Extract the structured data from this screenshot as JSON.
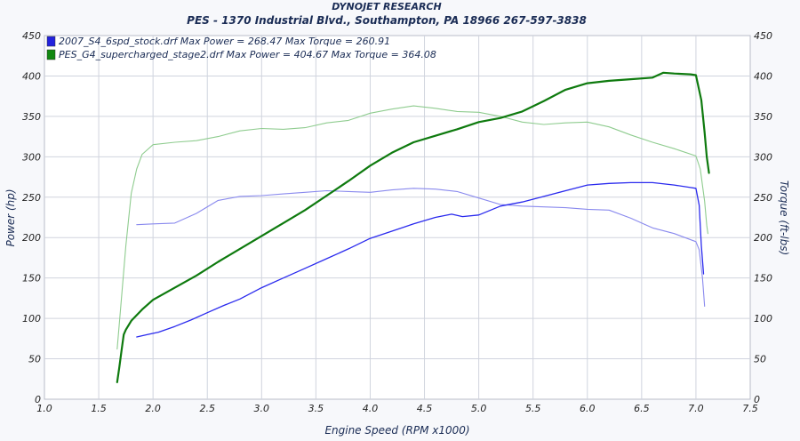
{
  "header": {
    "title": "DYNOJET RESEARCH",
    "subtitle": "PES - 1370 Industrial Blvd., Southampton, PA 18966  267-597-3838"
  },
  "chart_data": {
    "type": "line",
    "xlabel": "Engine Speed (RPM x1000)",
    "ylabel_left": "Power (hp)",
    "ylabel_right": "Torque (ft-lbs)",
    "xlim": [
      1.0,
      7.5
    ],
    "ylim_left": [
      0,
      450
    ],
    "ylim_right": [
      0,
      450
    ],
    "x_ticks": [
      "1.0",
      "1.5",
      "2.0",
      "2.5",
      "3.0",
      "3.5",
      "4.0",
      "4.5",
      "5.0",
      "5.5",
      "6.0",
      "6.5",
      "7.0",
      "7.5"
    ],
    "y_ticks": [
      "0",
      "50",
      "100",
      "150",
      "200",
      "250",
      "300",
      "350",
      "400",
      "450"
    ],
    "grid": true,
    "legend": [
      {
        "label": "2007_S4_6spd_stock.drf Max Power = 268.47 Max Torque = 260.91",
        "color": "#2222dd"
      },
      {
        "label": "PES_G4_supercharged_stage2.drf Max Power = 404.67 Max Torque = 364.08",
        "color": "#118811"
      }
    ],
    "series": [
      {
        "kind": "power",
        "axis": "left",
        "color": "#2a2aee",
        "x": [
          1.85,
          1.95,
          2.05,
          2.2,
          2.35,
          2.5,
          2.65,
          2.8,
          3.0,
          3.2,
          3.4,
          3.6,
          3.8,
          4.0,
          4.2,
          4.4,
          4.6,
          4.75,
          4.85,
          5.0,
          5.2,
          5.4,
          5.6,
          5.8,
          6.0,
          6.2,
          6.4,
          6.6,
          6.8,
          6.95,
          7.0,
          7.03,
          7.05,
          7.07
        ],
        "y": [
          77,
          80,
          83,
          90,
          98,
          107,
          116,
          124,
          138,
          150,
          162,
          174,
          186,
          199,
          208,
          217,
          225,
          229,
          226,
          228,
          239,
          244,
          251,
          258,
          265,
          267,
          268,
          268,
          265,
          262,
          261,
          240,
          190,
          155
        ]
      },
      {
        "kind": "torque",
        "axis": "right",
        "color": "#8a8aee",
        "x": [
          1.85,
          2.0,
          2.2,
          2.4,
          2.6,
          2.8,
          3.0,
          3.2,
          3.4,
          3.6,
          3.8,
          4.0,
          4.2,
          4.4,
          4.6,
          4.8,
          5.0,
          5.2,
          5.4,
          5.6,
          5.8,
          6.0,
          6.2,
          6.4,
          6.6,
          6.8,
          7.0,
          7.03,
          7.06,
          7.08
        ],
        "y": [
          216,
          217,
          218,
          230,
          246,
          251,
          252,
          254,
          256,
          258,
          257,
          256,
          259,
          261,
          260,
          257,
          249,
          241,
          239,
          238,
          237,
          235,
          234,
          224,
          212,
          205,
          195,
          185,
          150,
          115
        ]
      },
      {
        "kind": "power",
        "axis": "left",
        "color": "#0e7a0e",
        "x": [
          1.67,
          1.69,
          1.71,
          1.73,
          1.75,
          1.8,
          1.9,
          2.0,
          2.2,
          2.4,
          2.6,
          2.8,
          3.0,
          3.2,
          3.4,
          3.6,
          3.8,
          4.0,
          4.2,
          4.4,
          4.6,
          4.8,
          5.0,
          5.2,
          5.4,
          5.6,
          5.8,
          6.0,
          6.2,
          6.4,
          6.6,
          6.7,
          6.8,
          6.95,
          7.0,
          7.05,
          7.08,
          7.1,
          7.12
        ],
        "y": [
          21,
          40,
          60,
          80,
          86,
          97,
          111,
          123,
          138,
          153,
          170,
          186,
          202,
          218,
          234,
          252,
          270,
          289,
          305,
          318,
          326,
          334,
          343,
          348,
          356,
          369,
          383,
          391,
          394,
          396,
          398,
          404,
          403,
          402,
          401,
          370,
          330,
          300,
          280
        ]
      },
      {
        "kind": "torque",
        "axis": "right",
        "color": "#8fcc8f",
        "x": [
          1.67,
          1.7,
          1.75,
          1.8,
          1.85,
          1.9,
          2.0,
          2.2,
          2.4,
          2.6,
          2.8,
          3.0,
          3.2,
          3.4,
          3.6,
          3.8,
          4.0,
          4.2,
          4.4,
          4.6,
          4.8,
          5.0,
          5.2,
          5.4,
          5.6,
          5.8,
          6.0,
          6.2,
          6.4,
          6.6,
          6.8,
          7.0,
          7.04,
          7.08,
          7.1,
          7.11
        ],
        "y": [
          62,
          110,
          190,
          255,
          285,
          303,
          315,
          318,
          320,
          325,
          332,
          335,
          334,
          336,
          342,
          345,
          354,
          359,
          363,
          360,
          356,
          355,
          350,
          343,
          340,
          342,
          343,
          337,
          327,
          318,
          310,
          301,
          285,
          245,
          215,
          205
        ]
      }
    ]
  }
}
